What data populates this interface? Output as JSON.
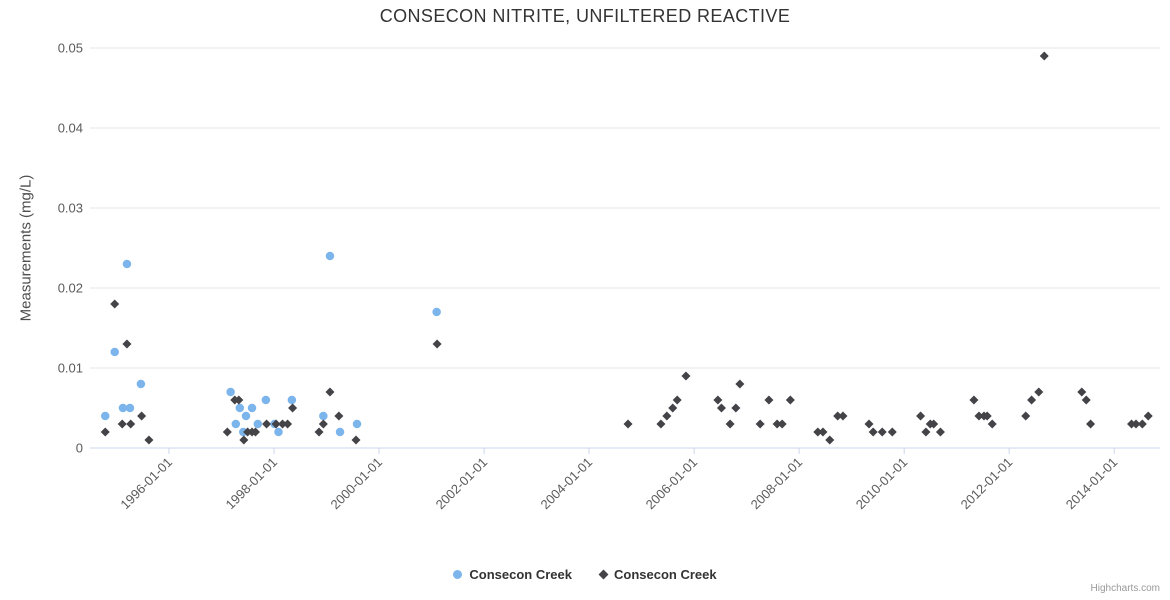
{
  "page": {
    "credits": "Highcharts.com"
  },
  "colors": {
    "grid": "#e6e6e6",
    "axis_line": "#ccd6eb",
    "series_blue": "#7cb5ec",
    "series_dark": "#434348",
    "title_text": "#333333",
    "tick_text": "#5a5a5a",
    "credits_text": "#999999"
  },
  "chart_data": {
    "type": "scatter",
    "title": "CONSECON NITRITE, UNFILTERED REACTIVE",
    "xlabel": "",
    "ylabel": "Measurements (mg/L)",
    "ylim": [
      0,
      0.05
    ],
    "yticks": [
      0,
      0.01,
      0.02,
      0.03,
      0.04,
      0.05
    ],
    "ytick_labels": [
      "0",
      "0.01",
      "0.02",
      "0.03",
      "0.04",
      "0.05"
    ],
    "xlim": [
      "1994-07-01",
      "2014-11-15"
    ],
    "xticks": [
      "1996-01-01",
      "1998-01-01",
      "2000-01-01",
      "2002-01-01",
      "2004-01-01",
      "2006-01-01",
      "2008-01-01",
      "2010-01-01",
      "2012-01-01",
      "2014-01-01"
    ],
    "grid": true,
    "legend_position": "bottom-center",
    "series": [
      {
        "name": "Consecon Creek",
        "marker": "circle",
        "color": "#7cb5ec",
        "points": [
          [
            "1994-10-15",
            0.004
          ],
          [
            "1994-12-20",
            0.012
          ],
          [
            "1995-02-15",
            0.005
          ],
          [
            "1995-03-15",
            0.023
          ],
          [
            "1995-04-05",
            0.005
          ],
          [
            "1995-06-20",
            0.008
          ],
          [
            "1997-03-05",
            0.007
          ],
          [
            "1997-04-10",
            0.003
          ],
          [
            "1997-05-08",
            0.005
          ],
          [
            "1997-06-01",
            0.002
          ],
          [
            "1997-06-20",
            0.004
          ],
          [
            "1997-08-01",
            0.005
          ],
          [
            "1997-09-10",
            0.003
          ],
          [
            "1997-11-05",
            0.006
          ],
          [
            "1998-01-05",
            0.003
          ],
          [
            "1998-02-01",
            0.002
          ],
          [
            "1998-05-05",
            0.006
          ],
          [
            "1998-12-10",
            0.004
          ],
          [
            "1999-01-25",
            0.024
          ],
          [
            "1999-04-05",
            0.002
          ],
          [
            "1999-08-01",
            0.003
          ],
          [
            "2001-02-05",
            0.017
          ]
        ]
      },
      {
        "name": "Consecon Creek",
        "marker": "diamond",
        "color": "#434348",
        "points": [
          [
            "1994-10-15",
            0.002
          ],
          [
            "1994-12-20",
            0.018
          ],
          [
            "1995-02-10",
            0.003
          ],
          [
            "1995-03-15",
            0.013
          ],
          [
            "1995-04-10",
            0.003
          ],
          [
            "1995-06-25",
            0.004
          ],
          [
            "1995-08-15",
            0.001
          ],
          [
            "1997-02-10",
            0.002
          ],
          [
            "1997-04-03",
            0.006
          ],
          [
            "1997-05-01",
            0.006
          ],
          [
            "1997-06-05",
            0.001
          ],
          [
            "1997-07-01",
            0.002
          ],
          [
            "1997-08-01",
            0.002
          ],
          [
            "1997-08-25",
            0.002
          ],
          [
            "1997-11-10",
            0.003
          ],
          [
            "1998-01-15",
            0.003
          ],
          [
            "1998-03-01",
            0.003
          ],
          [
            "1998-04-05",
            0.003
          ],
          [
            "1998-05-10",
            0.005
          ],
          [
            "1998-11-10",
            0.002
          ],
          [
            "1998-12-10",
            0.003
          ],
          [
            "1999-01-25",
            0.007
          ],
          [
            "1999-03-28",
            0.004
          ],
          [
            "1999-07-25",
            0.001
          ],
          [
            "2001-02-08",
            0.013
          ],
          [
            "2004-09-28",
            0.003
          ],
          [
            "2005-05-15",
            0.003
          ],
          [
            "2005-06-25",
            0.004
          ],
          [
            "2005-08-05",
            0.005
          ],
          [
            "2005-09-05",
            0.006
          ],
          [
            "2005-11-05",
            0.009
          ],
          [
            "2006-06-15",
            0.006
          ],
          [
            "2006-07-10",
            0.005
          ],
          [
            "2006-09-08",
            0.003
          ],
          [
            "2006-10-18",
            0.005
          ],
          [
            "2006-11-15",
            0.008
          ],
          [
            "2007-04-05",
            0.003
          ],
          [
            "2007-06-05",
            0.006
          ],
          [
            "2007-08-01",
            0.003
          ],
          [
            "2007-09-05",
            0.003
          ],
          [
            "2007-11-01",
            0.006
          ],
          [
            "2008-05-10",
            0.002
          ],
          [
            "2008-06-15",
            0.002
          ],
          [
            "2008-08-01",
            0.001
          ],
          [
            "2008-09-25",
            0.004
          ],
          [
            "2008-11-01",
            0.004
          ],
          [
            "2009-05-01",
            0.003
          ],
          [
            "2009-05-30",
            0.002
          ],
          [
            "2009-08-01",
            0.002
          ],
          [
            "2009-10-10",
            0.002
          ],
          [
            "2010-04-25",
            0.004
          ],
          [
            "2010-06-01",
            0.002
          ],
          [
            "2010-07-01",
            0.003
          ],
          [
            "2010-07-25",
            0.003
          ],
          [
            "2010-09-10",
            0.002
          ],
          [
            "2011-05-01",
            0.006
          ],
          [
            "2011-06-05",
            0.004
          ],
          [
            "2011-07-10",
            0.004
          ],
          [
            "2011-08-01",
            0.004
          ],
          [
            "2011-09-05",
            0.003
          ],
          [
            "2012-04-25",
            0.004
          ],
          [
            "2012-06-05",
            0.006
          ],
          [
            "2012-07-25",
            0.007
          ],
          [
            "2012-09-01",
            0.049
          ],
          [
            "2013-05-20",
            0.007
          ],
          [
            "2013-06-20",
            0.006
          ],
          [
            "2013-07-20",
            0.003
          ],
          [
            "2014-05-01",
            0.003
          ],
          [
            "2014-06-01",
            0.003
          ],
          [
            "2014-07-15",
            0.003
          ],
          [
            "2014-08-25",
            0.004
          ]
        ]
      }
    ]
  }
}
